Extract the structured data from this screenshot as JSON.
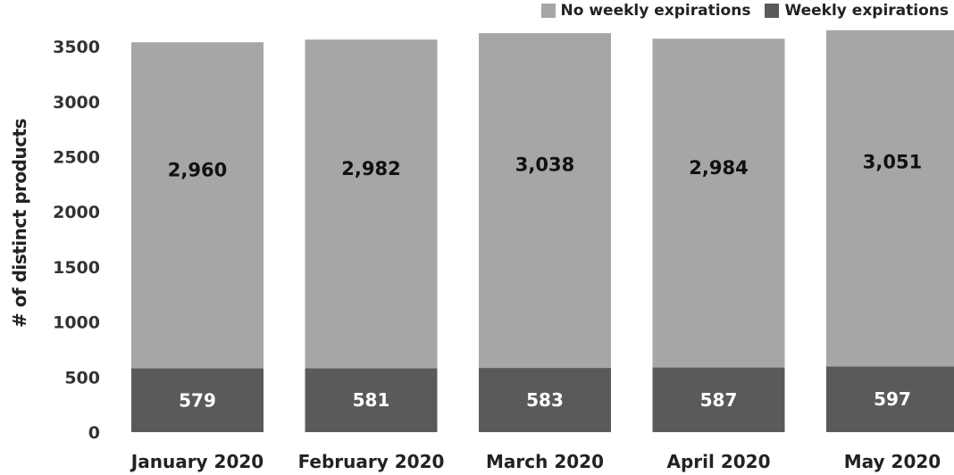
{
  "chart_data": {
    "type": "bar",
    "stacked": true,
    "categories": [
      "January 2020",
      "February 2020",
      "March 2020",
      "April 2020",
      "May 2020"
    ],
    "series": [
      {
        "name": "Weekly expirations",
        "values": [
          579,
          581,
          583,
          587,
          597
        ],
        "labels": [
          "579",
          "581",
          "583",
          "587",
          "597"
        ],
        "color": "#5a5a5a"
      },
      {
        "name": "No weekly expirations",
        "values": [
          2960,
          2982,
          3038,
          2984,
          3051
        ],
        "labels": [
          "2,960",
          "2,982",
          "3,038",
          "2,984",
          "3,051"
        ],
        "color": "#a6a6a6"
      }
    ],
    "title": "",
    "xlabel": "",
    "ylabel": "# of distinct products",
    "ylim": [
      0,
      3650
    ],
    "yticks": [
      0,
      500,
      1000,
      1500,
      2000,
      2500,
      3000,
      3500
    ],
    "ytick_labels": [
      "0",
      "500",
      "1000",
      "1500",
      "2000",
      "2500",
      "3000",
      "3500"
    ],
    "grid": false,
    "legend_position": "top-right",
    "legend_entries": [
      "No weekly expirations",
      "Weekly expirations"
    ]
  }
}
